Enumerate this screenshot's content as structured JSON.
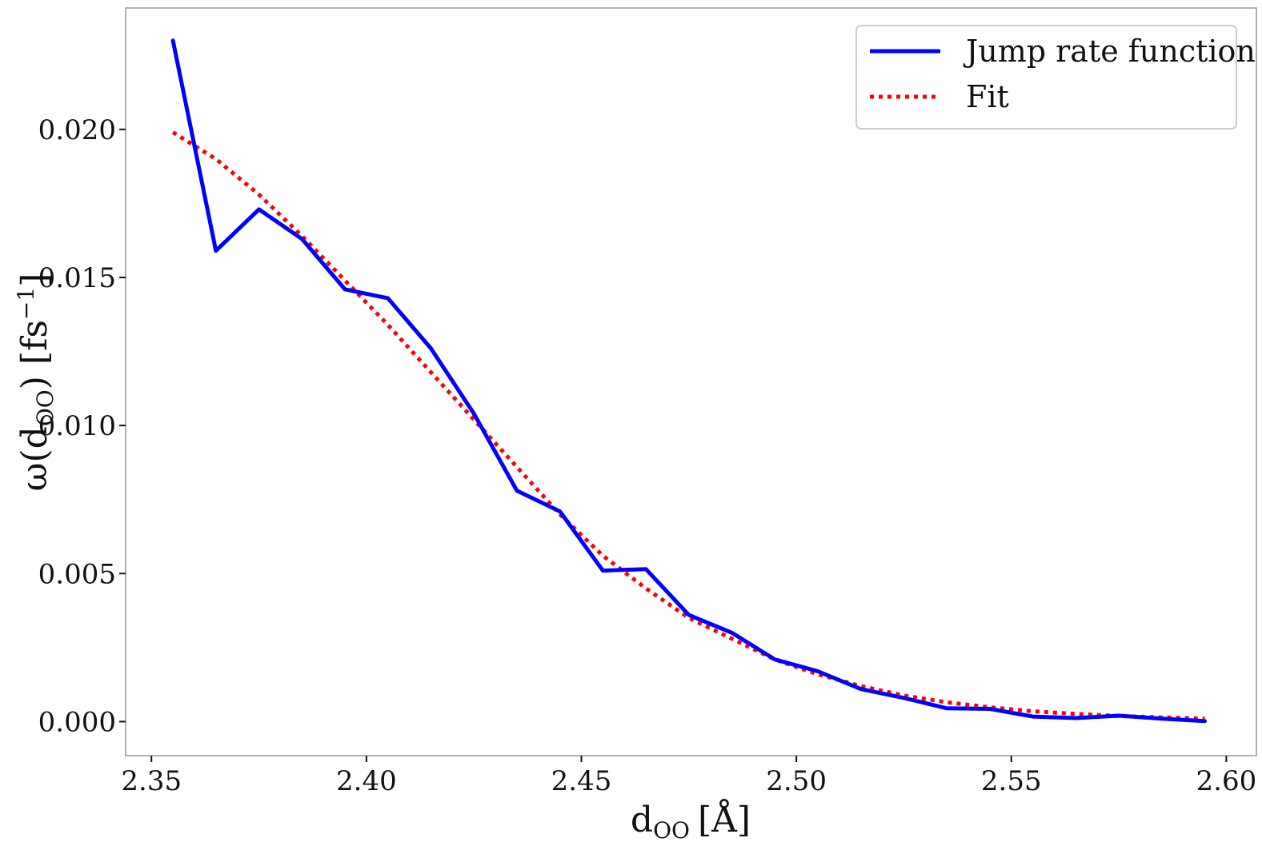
{
  "chart_data": {
    "type": "line",
    "title": "",
    "xlabel": {
      "main": "d",
      "sub": "OO",
      "unit": "[Å]"
    },
    "ylabel": {
      "pre": "ω(d",
      "sub": "OO",
      "mid": ") [fs",
      "sup": "−1",
      "post": "]"
    },
    "xlim": [
      2.344,
      2.607
    ],
    "ylim": [
      -0.00115,
      0.0241
    ],
    "x_ticks": [
      {
        "value": 2.35,
        "label": "2.35"
      },
      {
        "value": 2.4,
        "label": "2.40"
      },
      {
        "value": 2.45,
        "label": "2.45"
      },
      {
        "value": 2.5,
        "label": "2.50"
      },
      {
        "value": 2.55,
        "label": "2.55"
      },
      {
        "value": 2.6,
        "label": "2.60"
      }
    ],
    "y_ticks": [
      {
        "value": 0.0,
        "label": "0.000"
      },
      {
        "value": 0.005,
        "label": "0.005"
      },
      {
        "value": 0.01,
        "label": "0.010"
      },
      {
        "value": 0.015,
        "label": "0.015"
      },
      {
        "value": 0.02,
        "label": "0.020"
      }
    ],
    "grid": false,
    "legend_position": "top-right",
    "series": [
      {
        "name": "Jump rate function",
        "color": "#0000ff",
        "style": "solid",
        "x": [
          2.355,
          2.365,
          2.375,
          2.385,
          2.395,
          2.405,
          2.415,
          2.425,
          2.435,
          2.445,
          2.455,
          2.465,
          2.475,
          2.485,
          2.495,
          2.505,
          2.515,
          2.525,
          2.535,
          2.545,
          2.555,
          2.565,
          2.575,
          2.585,
          2.595
        ],
        "y": [
          0.023,
          0.0159,
          0.0173,
          0.0163,
          0.0146,
          0.0143,
          0.0126,
          0.0104,
          0.0078,
          0.0071,
          0.0051,
          0.00515,
          0.0036,
          0.003,
          0.0021,
          0.0017,
          0.0011,
          0.0008,
          0.00045,
          0.00043,
          0.00017,
          0.00012,
          0.0002,
          0.0001,
          2e-05
        ]
      },
      {
        "name": "Fit",
        "color": "#ff0000",
        "style": "dotted",
        "x": [
          2.355,
          2.365,
          2.375,
          2.385,
          2.395,
          2.405,
          2.415,
          2.425,
          2.435,
          2.445,
          2.455,
          2.465,
          2.475,
          2.485,
          2.495,
          2.505,
          2.515,
          2.525,
          2.535,
          2.545,
          2.555,
          2.565,
          2.575,
          2.585,
          2.595
        ],
        "y": [
          0.0199,
          0.019,
          0.0178,
          0.0164,
          0.0149,
          0.0134,
          0.0118,
          0.0102,
          0.0086,
          0.007,
          0.0056,
          0.0045,
          0.0035,
          0.0028,
          0.0021,
          0.0016,
          0.0012,
          0.00088,
          0.00065,
          0.00048,
          0.00035,
          0.00026,
          0.00019,
          0.00014,
          0.0001
        ]
      }
    ]
  }
}
